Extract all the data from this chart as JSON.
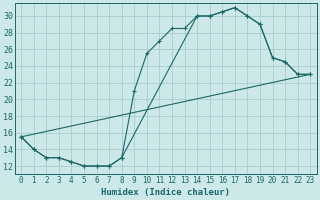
{
  "xlabel": "Humidex (Indice chaleur)",
  "bg_color": "#cce8e8",
  "grid_color": "#aacccc",
  "line_color": "#1a6868",
  "xlim": [
    -0.5,
    23.5
  ],
  "ylim": [
    11.0,
    31.5
  ],
  "xticks": [
    0,
    1,
    2,
    3,
    4,
    5,
    6,
    7,
    8,
    9,
    10,
    11,
    12,
    13,
    14,
    15,
    16,
    17,
    18,
    19,
    20,
    21,
    22,
    23
  ],
  "yticks": [
    12,
    14,
    16,
    18,
    20,
    22,
    24,
    26,
    28,
    30
  ],
  "line1_x": [
    0,
    1,
    2,
    3,
    4,
    5,
    6,
    7,
    8,
    9,
    10,
    11,
    12,
    13,
    14,
    15,
    16,
    17,
    18,
    19,
    20,
    21,
    22,
    23
  ],
  "line1_y": [
    15.5,
    14.0,
    13.0,
    13.0,
    12.5,
    12.0,
    12.0,
    12.0,
    13.0,
    21.0,
    25.5,
    27.0,
    28.5,
    28.5,
    30.0,
    30.0,
    30.5,
    31.0,
    30.0,
    29.0,
    25.0,
    24.5,
    23.0,
    23.0
  ],
  "line2_x": [
    0,
    1,
    2,
    3,
    4,
    5,
    6,
    7,
    8,
    14,
    15,
    16,
    17,
    18,
    19,
    20,
    21,
    22,
    23
  ],
  "line2_y": [
    15.5,
    14.0,
    13.0,
    13.0,
    12.5,
    12.0,
    12.0,
    12.0,
    13.0,
    30.0,
    30.0,
    30.5,
    31.0,
    30.0,
    29.0,
    25.0,
    24.5,
    23.0,
    23.0
  ],
  "line3_x": [
    0,
    23
  ],
  "line3_y": [
    15.5,
    23.0
  ]
}
